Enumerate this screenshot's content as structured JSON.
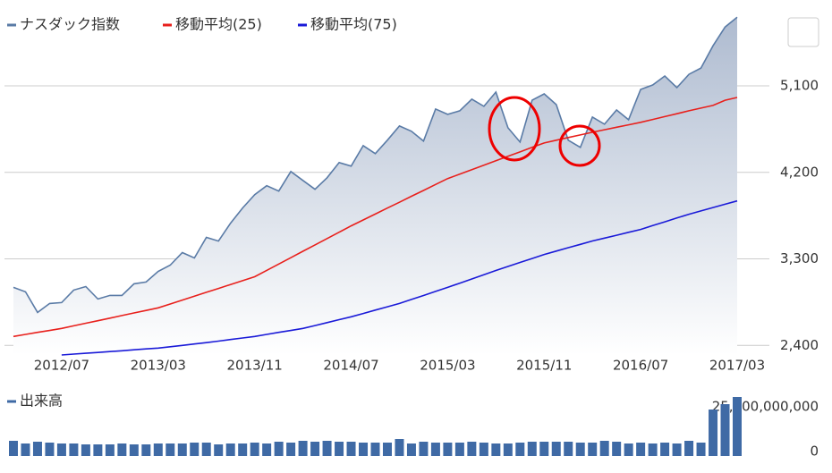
{
  "chart_data": [
    {
      "type": "line",
      "categories": [
        null,
        null,
        null,
        null,
        "2012/07",
        null,
        null,
        null,
        null,
        null,
        null,
        null,
        "2013/03",
        null,
        null,
        null,
        null,
        null,
        null,
        null,
        "2013/11",
        null,
        null,
        null,
        null,
        null,
        null,
        null,
        "2014/07",
        null,
        null,
        null,
        null,
        null,
        null,
        null,
        "2015/03",
        null,
        null,
        null,
        null,
        null,
        null,
        null,
        "2015/11",
        null,
        null,
        null,
        null,
        null,
        null,
        null,
        "2016/07",
        null,
        null,
        null,
        null,
        null,
        null,
        null,
        "2017/03"
      ],
      "series": [
        {
          "name": "ナスダック指数",
          "color": "#5a7ba6",
          "values": [
            3003,
            2957,
            2743,
            2836,
            2845,
            2975,
            3012,
            2882,
            2920,
            2920,
            3040,
            3059,
            3170,
            3235,
            3365,
            3309,
            3523,
            3485,
            3671,
            3829,
            3968,
            4061,
            4005,
            4209,
            4116,
            4024,
            4144,
            4302,
            4265,
            4478,
            4395,
            4534,
            4682,
            4627,
            4525,
            4859,
            4803,
            4840,
            4961,
            4887,
            5035,
            4664,
            4515,
            4951,
            5016,
            4905,
            4534,
            4460,
            4775,
            4701,
            4849,
            4747,
            5063,
            5109,
            5202,
            5081,
            5220,
            5285,
            5517,
            5712,
            5814
          ]
        },
        {
          "name": "移動平均(25)",
          "color": "#e8201c",
          "values": [
            2493,
            2514,
            2535,
            2555,
            2576,
            2603,
            2630,
            2656,
            2683,
            2710,
            2737,
            2763,
            2790,
            2830,
            2871,
            2911,
            2952,
            2992,
            3033,
            3073,
            3114,
            3180,
            3246,
            3312,
            3379,
            3445,
            3511,
            3577,
            3643,
            3705,
            3766,
            3828,
            3889,
            3951,
            4012,
            4074,
            4135,
            4181,
            4227,
            4274,
            4320,
            4367,
            4413,
            4460,
            4506,
            4534,
            4562,
            4589,
            4617,
            4643,
            4669,
            4694,
            4720,
            4750,
            4780,
            4810,
            4840,
            4868,
            4896,
            4950,
            4979
          ]
        },
        {
          "name": "移動平均(75)",
          "color": "#1a1ad8",
          "values": [
            null,
            null,
            null,
            null,
            2300,
            2309,
            2318,
            2326,
            2335,
            2344,
            2354,
            2363,
            2372,
            2386,
            2400,
            2414,
            2428,
            2444,
            2461,
            2477,
            2493,
            2514,
            2535,
            2555,
            2576,
            2606,
            2637,
            2667,
            2697,
            2732,
            2767,
            2801,
            2836,
            2878,
            2919,
            2961,
            3003,
            3047,
            3091,
            3135,
            3179,
            3221,
            3263,
            3304,
            3346,
            3381,
            3416,
            3451,
            3486,
            3516,
            3546,
            3576,
            3606,
            3646,
            3685,
            3725,
            3764,
            3799,
            3834,
            3868,
            3903
          ]
        }
      ],
      "ylim": [
        2300,
        5900
      ],
      "yticks": [
        {
          "value": 2400,
          "label": "2,400"
        },
        {
          "value": 3300,
          "label": "3,300"
        },
        {
          "value": 4200,
          "label": "4,200"
        },
        {
          "value": 5100,
          "label": "5,100"
        }
      ],
      "grid": true
    },
    {
      "type": "bar",
      "series": [
        {
          "name": "出来高",
          "color": "#3f6aa5",
          "values": [
            8500000000,
            7000000000,
            8000000000,
            7500000000,
            7000000000,
            7000000000,
            6500000000,
            6500000000,
            6500000000,
            7000000000,
            6500000000,
            6500000000,
            7000000000,
            7000000000,
            7000000000,
            7500000000,
            7500000000,
            6500000000,
            7000000000,
            7000000000,
            7500000000,
            7000000000,
            8000000000,
            7500000000,
            8500000000,
            8000000000,
            8500000000,
            8000000000,
            8000000000,
            7500000000,
            7500000000,
            7500000000,
            9500000000,
            7000000000,
            8000000000,
            7500000000,
            7500000000,
            7500000000,
            8000000000,
            7500000000,
            7000000000,
            7000000000,
            7500000000,
            8000000000,
            8000000000,
            8000000000,
            8000000000,
            7500000000,
            7500000000,
            8500000000,
            8000000000,
            7000000000,
            7500000000,
            7000000000,
            7500000000,
            7000000000,
            8500000000,
            7500000000,
            26000000000,
            29000000000,
            33000000000
          ]
        }
      ],
      "ylim": [
        0,
        33500000000
      ],
      "yticks": [
        0,
        {
          "value": 25000000000,
          "label": "25,000,000,000"
        }
      ]
    }
  ]
}
